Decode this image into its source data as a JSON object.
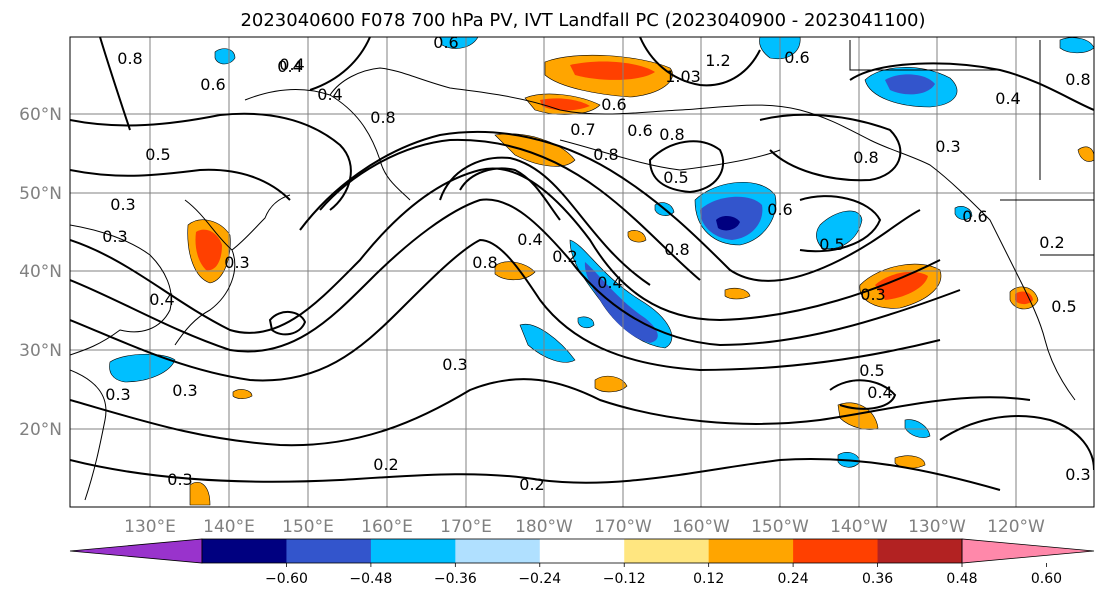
{
  "title": "2023040600 F078 700 hPa PV, IVT Landfall PC (2023040900 - 2023041100)",
  "map": {
    "lon_labels": [
      "130°E",
      "140°E",
      "150°E",
      "160°E",
      "170°E",
      "180°W",
      "170°W",
      "160°W",
      "150°W",
      "140°W",
      "130°W",
      "120°W"
    ],
    "lat_labels": [
      "60°N",
      "50°N",
      "40°N",
      "30°N",
      "20°N"
    ],
    "coast_color": "#000000",
    "grid_color": "#808080"
  },
  "colorbar": {
    "tick_labels": [
      "−0.60",
      "−0.48",
      "−0.36",
      "−0.24",
      "−0.12",
      "0.12",
      "0.24",
      "0.36",
      "0.48",
      "0.60"
    ],
    "colors": [
      "#9933cc",
      "#000080",
      "#3355cc",
      "#00bfff",
      "#b0e0ff",
      "#ffffff",
      "#ffe680",
      "#ffa500",
      "#ff4000",
      "#b22222",
      "#ff88aa"
    ]
  },
  "contour_labels": [
    "0.6",
    "0.4",
    "0.6",
    "0.8",
    "0.4",
    "1.2",
    "1.03",
    "0.6",
    "0.8",
    "0.8",
    "0.5",
    "0.7",
    "0.8",
    "0.6",
    "0.5",
    "0.8",
    "0.6",
    "0.3",
    "0.3",
    "0.3",
    "0.4",
    "0.2",
    "0.5",
    "0.8",
    "0.3",
    "0.3",
    "0.4",
    "0.8",
    "0.6",
    "0.5",
    "0.3",
    "0.5",
    "0.4",
    "0.3",
    "0.2",
    "0.2",
    "0.3",
    "0.4",
    "0.3",
    "0.2",
    "0.3",
    "0.6",
    "0.4",
    "0.8",
    "0.4"
  ]
}
